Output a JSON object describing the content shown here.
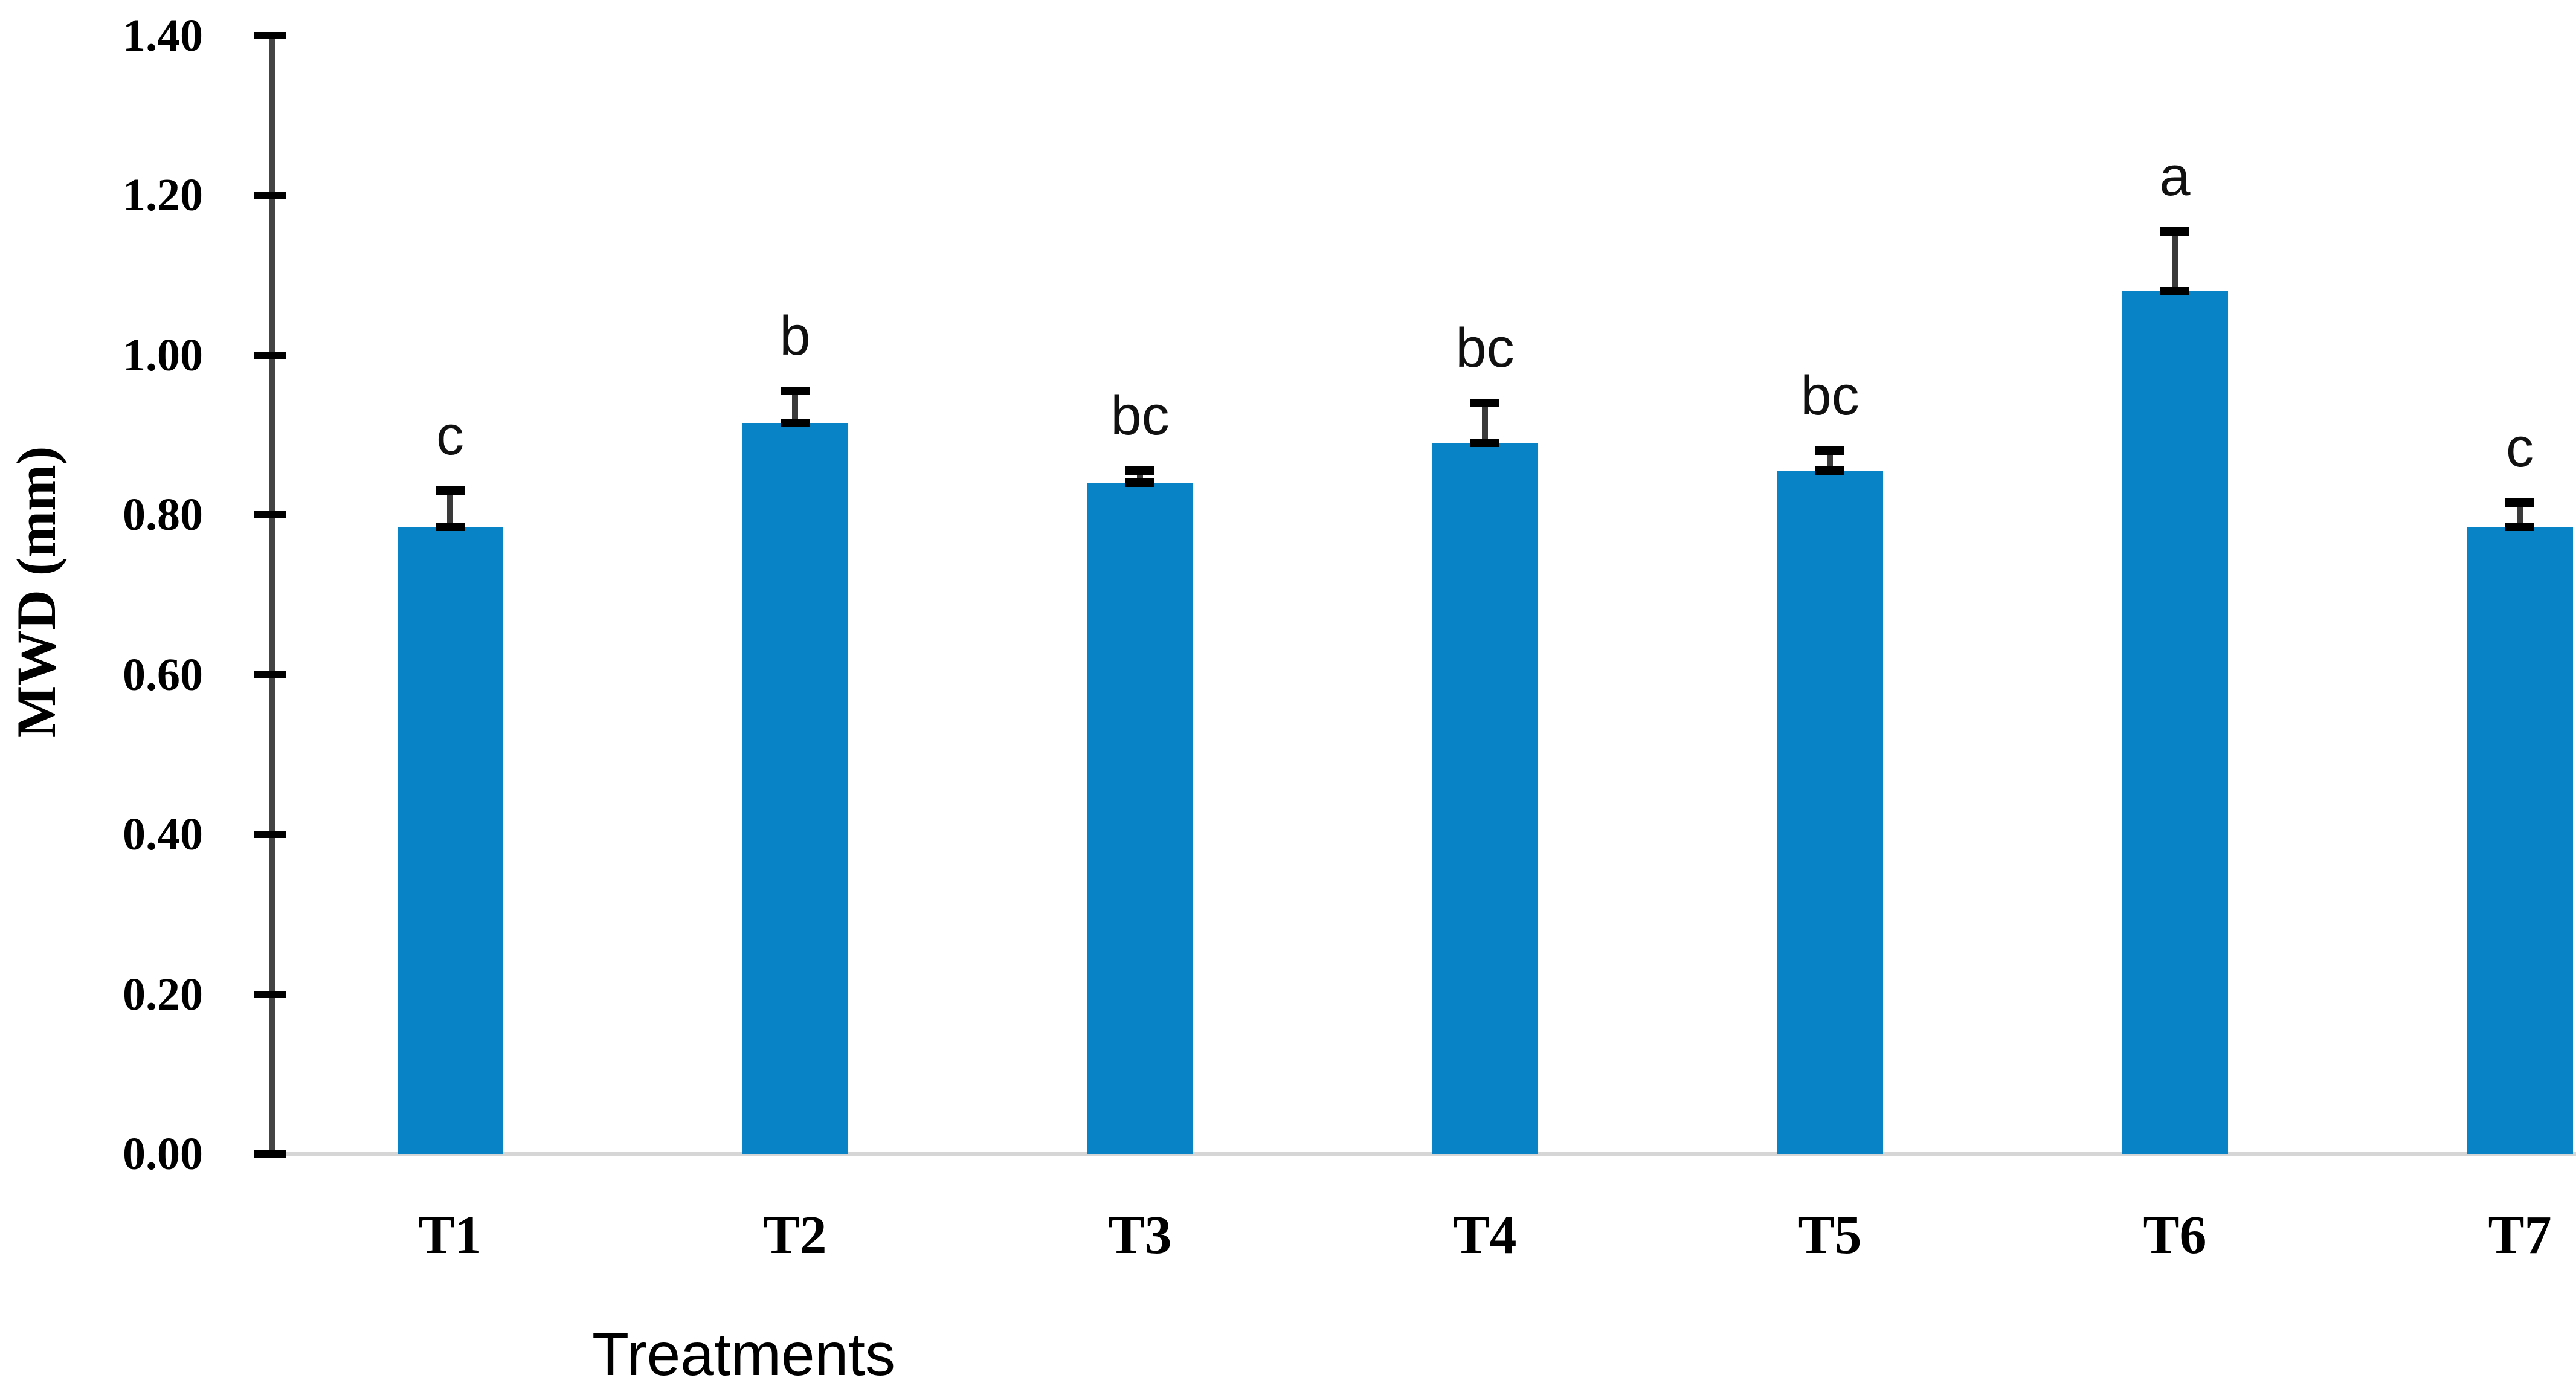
{
  "chart_data": {
    "type": "bar",
    "title": "",
    "categories": [
      "T1",
      "T2",
      "T3",
      "T4",
      "T5",
      "T6",
      "T7"
    ],
    "values": [
      0.785,
      0.915,
      0.84,
      0.89,
      0.855,
      1.08,
      0.785
    ],
    "errors_plus": [
      0.045,
      0.04,
      0.015,
      0.05,
      0.025,
      0.075,
      0.03
    ],
    "sig_letters": [
      "c",
      "b",
      "bc",
      "bc",
      "bc",
      "a",
      "c"
    ],
    "xlabel": "Treatments",
    "ylabel": "MWD (mm)",
    "ylim": [
      0.0,
      1.4
    ],
    "ytick_step": 0.2,
    "ytick_labels": [
      "0.00",
      "0.20",
      "0.40",
      "0.60",
      "0.80",
      "1.00",
      "1.20",
      "1.40"
    ],
    "grid": "off",
    "legend": "none",
    "bar_color": "#0883c6",
    "baseline_color": "#d6d6d6",
    "axis_color": "#444444",
    "error_bar_color": "#000000",
    "text_color": "#000000"
  }
}
